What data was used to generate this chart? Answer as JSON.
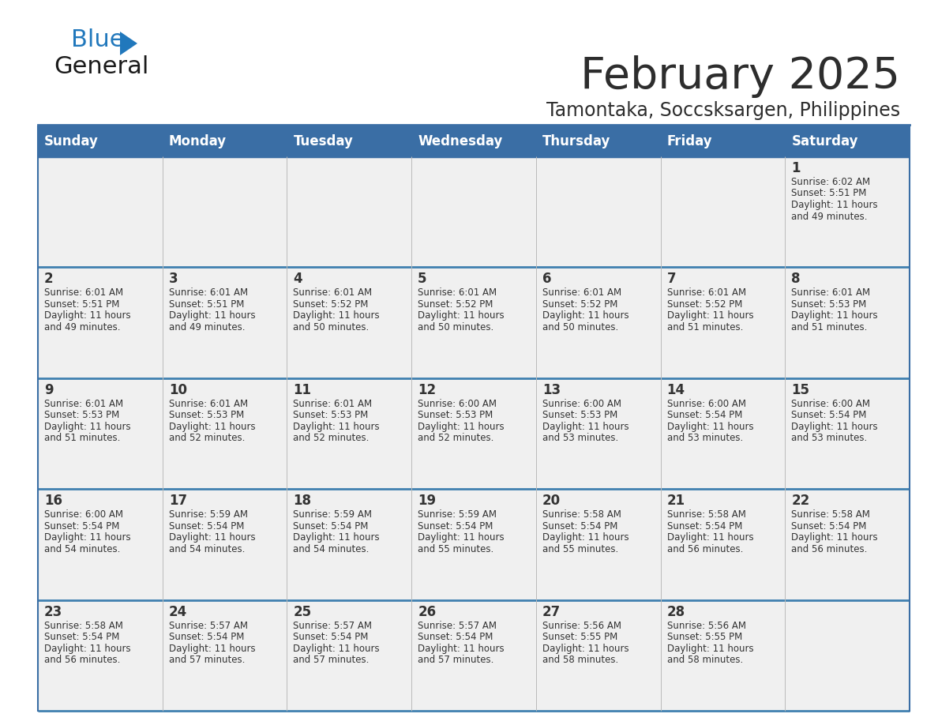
{
  "title": "February 2025",
  "subtitle": "Tamontaka, Soccsksargen, Philippines",
  "header_color": "#3A6EA5",
  "header_text_color": "#FFFFFF",
  "days_of_week": [
    "Sunday",
    "Monday",
    "Tuesday",
    "Wednesday",
    "Thursday",
    "Friday",
    "Saturday"
  ],
  "background_color": "#FFFFFF",
  "cell_bg_color": "#F0F0F0",
  "border_color": "#3A6EA5",
  "separator_color": "#4080B0",
  "day_number_color": "#333333",
  "info_text_color": "#333333",
  "calendar_data": [
    [
      null,
      null,
      null,
      null,
      null,
      null,
      {
        "day": "1",
        "sunrise": "6:02 AM",
        "sunset": "5:51 PM",
        "daylight_h": "11 hours",
        "daylight_m": "and 49 minutes."
      }
    ],
    [
      {
        "day": "2",
        "sunrise": "6:01 AM",
        "sunset": "5:51 PM",
        "daylight_h": "11 hours",
        "daylight_m": "and 49 minutes."
      },
      {
        "day": "3",
        "sunrise": "6:01 AM",
        "sunset": "5:51 PM",
        "daylight_h": "11 hours",
        "daylight_m": "and 49 minutes."
      },
      {
        "day": "4",
        "sunrise": "6:01 AM",
        "sunset": "5:52 PM",
        "daylight_h": "11 hours",
        "daylight_m": "and 50 minutes."
      },
      {
        "day": "5",
        "sunrise": "6:01 AM",
        "sunset": "5:52 PM",
        "daylight_h": "11 hours",
        "daylight_m": "and 50 minutes."
      },
      {
        "day": "6",
        "sunrise": "6:01 AM",
        "sunset": "5:52 PM",
        "daylight_h": "11 hours",
        "daylight_m": "and 50 minutes."
      },
      {
        "day": "7",
        "sunrise": "6:01 AM",
        "sunset": "5:52 PM",
        "daylight_h": "11 hours",
        "daylight_m": "and 51 minutes."
      },
      {
        "day": "8",
        "sunrise": "6:01 AM",
        "sunset": "5:53 PM",
        "daylight_h": "11 hours",
        "daylight_m": "and 51 minutes."
      }
    ],
    [
      {
        "day": "9",
        "sunrise": "6:01 AM",
        "sunset": "5:53 PM",
        "daylight_h": "11 hours",
        "daylight_m": "and 51 minutes."
      },
      {
        "day": "10",
        "sunrise": "6:01 AM",
        "sunset": "5:53 PM",
        "daylight_h": "11 hours",
        "daylight_m": "and 52 minutes."
      },
      {
        "day": "11",
        "sunrise": "6:01 AM",
        "sunset": "5:53 PM",
        "daylight_h": "11 hours",
        "daylight_m": "and 52 minutes."
      },
      {
        "day": "12",
        "sunrise": "6:00 AM",
        "sunset": "5:53 PM",
        "daylight_h": "11 hours",
        "daylight_m": "and 52 minutes."
      },
      {
        "day": "13",
        "sunrise": "6:00 AM",
        "sunset": "5:53 PM",
        "daylight_h": "11 hours",
        "daylight_m": "and 53 minutes."
      },
      {
        "day": "14",
        "sunrise": "6:00 AM",
        "sunset": "5:54 PM",
        "daylight_h": "11 hours",
        "daylight_m": "and 53 minutes."
      },
      {
        "day": "15",
        "sunrise": "6:00 AM",
        "sunset": "5:54 PM",
        "daylight_h": "11 hours",
        "daylight_m": "and 53 minutes."
      }
    ],
    [
      {
        "day": "16",
        "sunrise": "6:00 AM",
        "sunset": "5:54 PM",
        "daylight_h": "11 hours",
        "daylight_m": "and 54 minutes."
      },
      {
        "day": "17",
        "sunrise": "5:59 AM",
        "sunset": "5:54 PM",
        "daylight_h": "11 hours",
        "daylight_m": "and 54 minutes."
      },
      {
        "day": "18",
        "sunrise": "5:59 AM",
        "sunset": "5:54 PM",
        "daylight_h": "11 hours",
        "daylight_m": "and 54 minutes."
      },
      {
        "day": "19",
        "sunrise": "5:59 AM",
        "sunset": "5:54 PM",
        "daylight_h": "11 hours",
        "daylight_m": "and 55 minutes."
      },
      {
        "day": "20",
        "sunrise": "5:58 AM",
        "sunset": "5:54 PM",
        "daylight_h": "11 hours",
        "daylight_m": "and 55 minutes."
      },
      {
        "day": "21",
        "sunrise": "5:58 AM",
        "sunset": "5:54 PM",
        "daylight_h": "11 hours",
        "daylight_m": "and 56 minutes."
      },
      {
        "day": "22",
        "sunrise": "5:58 AM",
        "sunset": "5:54 PM",
        "daylight_h": "11 hours",
        "daylight_m": "and 56 minutes."
      }
    ],
    [
      {
        "day": "23",
        "sunrise": "5:58 AM",
        "sunset": "5:54 PM",
        "daylight_h": "11 hours",
        "daylight_m": "and 56 minutes."
      },
      {
        "day": "24",
        "sunrise": "5:57 AM",
        "sunset": "5:54 PM",
        "daylight_h": "11 hours",
        "daylight_m": "and 57 minutes."
      },
      {
        "day": "25",
        "sunrise": "5:57 AM",
        "sunset": "5:54 PM",
        "daylight_h": "11 hours",
        "daylight_m": "and 57 minutes."
      },
      {
        "day": "26",
        "sunrise": "5:57 AM",
        "sunset": "5:54 PM",
        "daylight_h": "11 hours",
        "daylight_m": "and 57 minutes."
      },
      {
        "day": "27",
        "sunrise": "5:56 AM",
        "sunset": "5:55 PM",
        "daylight_h": "11 hours",
        "daylight_m": "and 58 minutes."
      },
      {
        "day": "28",
        "sunrise": "5:56 AM",
        "sunset": "5:55 PM",
        "daylight_h": "11 hours",
        "daylight_m": "and 58 minutes."
      },
      null
    ]
  ],
  "logo_color_general": "#1A1A1A",
  "logo_color_blue": "#2178BC",
  "logo_triangle_color": "#2178BC",
  "title_color": "#2D2D2D",
  "subtitle_color": "#2D2D2D"
}
